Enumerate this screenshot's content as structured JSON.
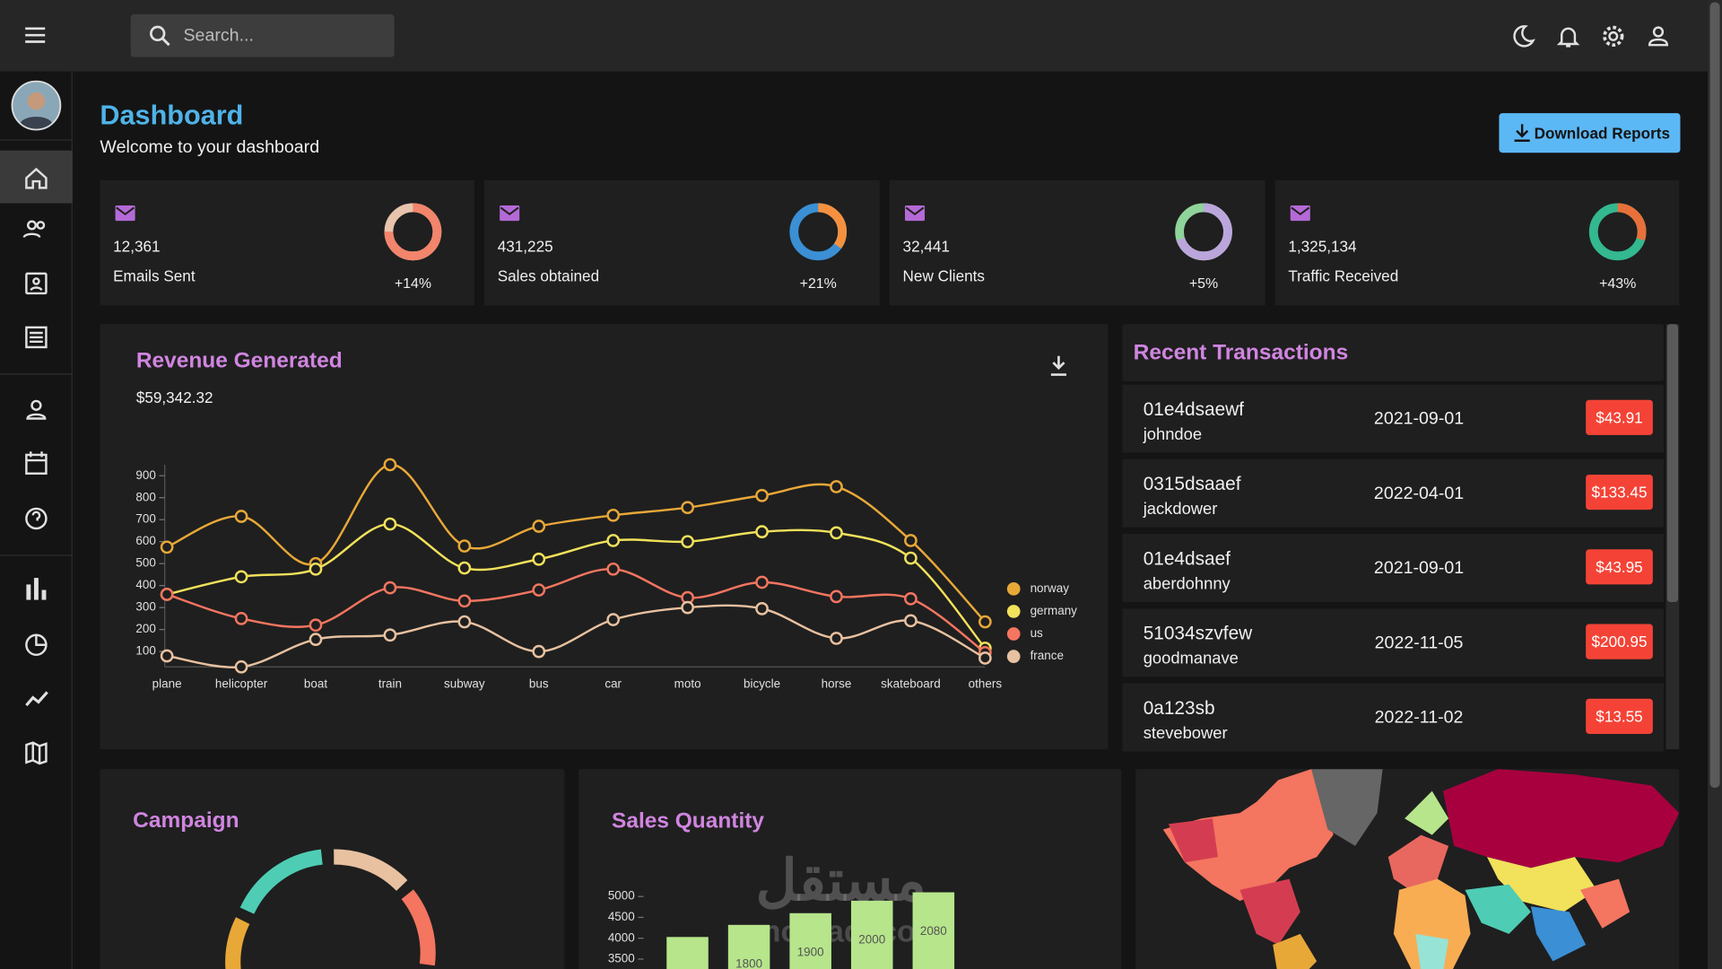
{
  "header": {
    "search_placeholder": "Search..."
  },
  "page": {
    "title": "Dashboard",
    "subtitle": "Welcome to your dashboard",
    "download_button": "Download Reports"
  },
  "stats": [
    {
      "value": "12,361",
      "label": "Emails Sent",
      "change": "+14%",
      "progress": 0.75,
      "color": "#f2856b",
      "track": "#e8c4ad"
    },
    {
      "value": "431,225",
      "label": "Sales obtained",
      "change": "+21%",
      "progress": 0.35,
      "color": "#f5913e",
      "track": "#3b8fd4"
    },
    {
      "value": "32,441",
      "label": "New Clients",
      "change": "+5%",
      "progress": 0.7,
      "color": "#bba6dc",
      "track": "#8fd49a"
    },
    {
      "value": "1,325,134",
      "label": "Traffic Received",
      "change": "+43%",
      "progress": 0.3,
      "color": "#e8703a",
      "track": "#33b890"
    }
  ],
  "transactions": {
    "title": "Recent Transactions",
    "rows": [
      {
        "tx": "01e4dsaewf",
        "user": "johndoe",
        "date": "2021-09-01",
        "cost": "$43.91"
      },
      {
        "tx": "0315dsaaef",
        "user": "jackdower",
        "date": "2022-04-01",
        "cost": "$133.45"
      },
      {
        "tx": "01e4dsaef",
        "user": "aberdohnny",
        "date": "2021-09-01",
        "cost": "$43.95"
      },
      {
        "tx": "51034szvfew",
        "user": "goodmanave",
        "date": "2022-11-05",
        "cost": "$200.95"
      },
      {
        "tx": "0a123sb",
        "user": "stevebower",
        "date": "2022-11-02",
        "cost": "$13.55"
      }
    ]
  },
  "campaign": {
    "title": "Campaign"
  },
  "watermark": {
    "arabic": "مستقل",
    "latin": "mostaql.com"
  },
  "chart_data": [
    {
      "type": "line",
      "title": "Revenue Generated",
      "subtitle": "$59,342.32",
      "categories": [
        "plane",
        "helicopter",
        "boat",
        "train",
        "subway",
        "bus",
        "car",
        "moto",
        "bicycle",
        "horse",
        "skateboard",
        "others"
      ],
      "series": [
        {
          "name": "norway",
          "color": "#e8a838",
          "values": [
            575,
            715,
            500,
            950,
            580,
            670,
            720,
            755,
            810,
            850,
            605,
            235
          ]
        },
        {
          "name": "germany",
          "color": "#f1e15b",
          "values": [
            360,
            440,
            475,
            680,
            480,
            520,
            605,
            600,
            645,
            640,
            525,
            115
          ]
        },
        {
          "name": "us",
          "color": "#f47560",
          "values": [
            360,
            250,
            220,
            390,
            330,
            380,
            475,
            345,
            415,
            350,
            340,
            95
          ]
        },
        {
          "name": "france",
          "color": "#e8c1a0",
          "values": [
            80,
            30,
            155,
            175,
            235,
            100,
            245,
            300,
            295,
            160,
            240,
            70
          ]
        }
      ],
      "ylim": [
        0,
        950
      ],
      "yticks": [
        100,
        200,
        300,
        400,
        500,
        600,
        700,
        800,
        900
      ],
      "legend": "right"
    },
    {
      "type": "bar",
      "title": "Sales Quantity",
      "categories": [
        null,
        null,
        null,
        null,
        null
      ],
      "values": [
        4030,
        4320,
        4600,
        4900,
        5100
      ],
      "annotations": [
        "1800",
        "1900",
        "2000",
        "2080"
      ],
      "color": "#b6e58b",
      "ylim": [
        3500,
        5000
      ],
      "yticks": [
        3500,
        4000,
        4500,
        5000
      ]
    }
  ]
}
